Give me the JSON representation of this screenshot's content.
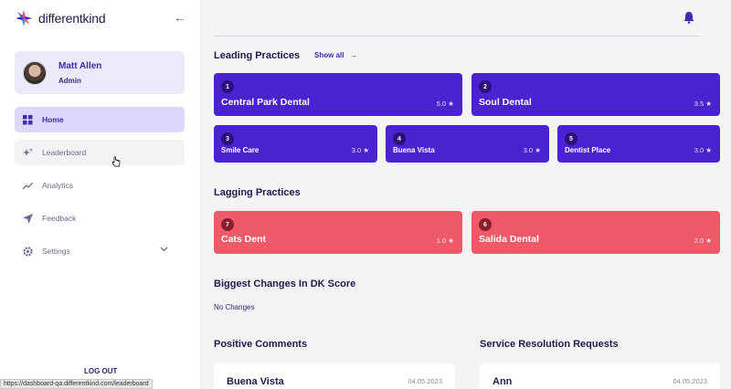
{
  "brand": {
    "name": "differentkind"
  },
  "user": {
    "name": "Matt Allen",
    "role": "Admin"
  },
  "nav": [
    {
      "label": "Home",
      "icon": "grid-icon",
      "state": "active"
    },
    {
      "label": "Leaderboard",
      "icon": "sparkle-icon",
      "state": "hover"
    },
    {
      "label": "Analytics",
      "icon": "trend-icon",
      "state": "normal"
    },
    {
      "label": "Feedback",
      "icon": "send-icon",
      "state": "normal"
    },
    {
      "label": "Settings",
      "icon": "gear-icon",
      "state": "normal",
      "expandable": true
    }
  ],
  "logout_label": "LOG OUT",
  "status_url": "https://dashboard-qa.differentkind.com/leaderboard",
  "leading": {
    "title": "Leading Practices",
    "show_all": "Show all",
    "items": [
      {
        "rank": "1",
        "name": "Central Park Dental",
        "score": "5.0 ★"
      },
      {
        "rank": "2",
        "name": "Soul Dental",
        "score": "3.5 ★"
      },
      {
        "rank": "3",
        "name": "Smile Care",
        "score": "3.0 ★"
      },
      {
        "rank": "4",
        "name": "Buena Vista",
        "score": "3.0 ★"
      },
      {
        "rank": "5",
        "name": "Dentist Place",
        "score": "3.0 ★"
      }
    ]
  },
  "lagging": {
    "title": "Lagging Practices",
    "items": [
      {
        "rank": "7",
        "name": "Cats Dent",
        "score": "1.0 ★"
      },
      {
        "rank": "6",
        "name": "Salida Dental",
        "score": "2.0 ★"
      }
    ]
  },
  "changes": {
    "title": "Biggest Changes In DK Score",
    "empty_text": "No Changes"
  },
  "positive_comments": {
    "title": "Positive Comments",
    "items": [
      {
        "name": "Buena Vista",
        "date": "04.05.2023"
      }
    ]
  },
  "service_requests": {
    "title": "Service Resolution Requests",
    "items": [
      {
        "name": "Ann",
        "date": "04.05.2023"
      }
    ]
  },
  "colors": {
    "accent": "#4a22d0",
    "lagging": "#ee5a68",
    "nav_active_bg": "#ddd6fb",
    "profile_bg": "#ece9fb"
  }
}
